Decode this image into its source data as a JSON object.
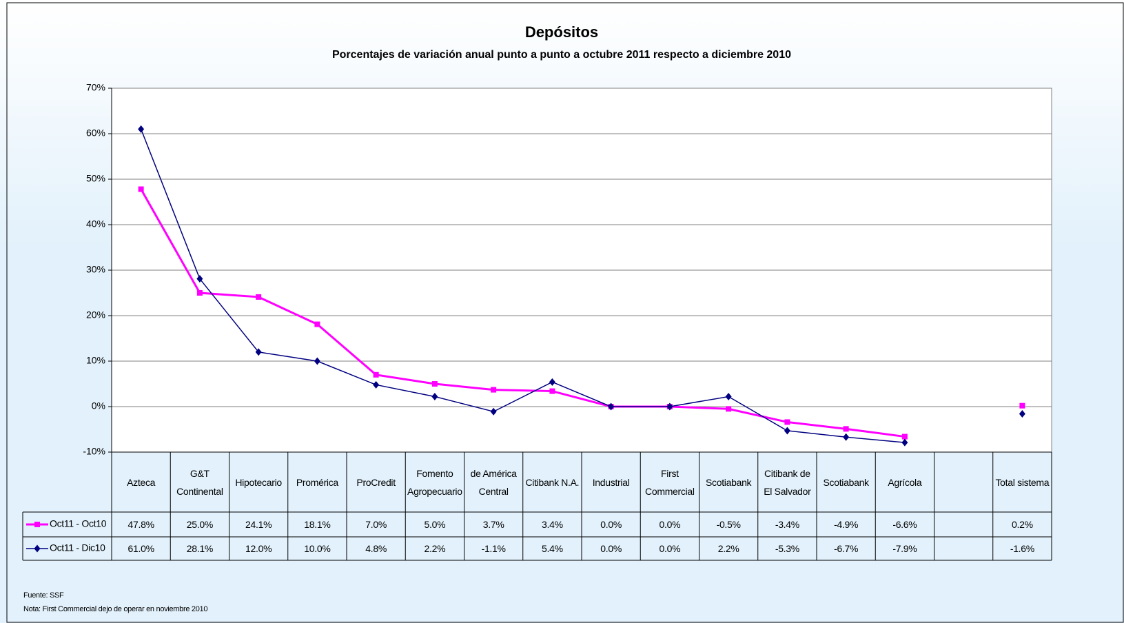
{
  "chart_data": {
    "type": "line",
    "title": "Depósitos",
    "subtitle": "Porcentajes de variación anual punto a punto a octubre 2011 respecto a diciembre 2010",
    "categories": [
      "Azteca",
      "G&T Continental",
      "Hipotecario",
      "Promérica",
      "ProCredit",
      "Fomento Agropecuario",
      "de América Central",
      "Citibank N.A.",
      "Industrial",
      "First Commercial",
      "Scotiabank",
      "Citibank de El Salvador",
      "Scotiabank",
      "Agrícola",
      null,
      "Total sistema"
    ],
    "series": [
      {
        "name": "Oct11 - Oct10",
        "color": "#ff00ff",
        "marker": "square",
        "values": [
          47.8,
          25.0,
          24.1,
          18.1,
          7.0,
          5.0,
          3.7,
          3.4,
          0.0,
          0.0,
          -0.5,
          -3.4,
          -4.9,
          -6.6,
          null,
          0.2
        ],
        "value_labels": [
          "47.8%",
          "25.0%",
          "24.1%",
          "18.1%",
          "7.0%",
          "5.0%",
          "3.7%",
          "3.4%",
          "0.0%",
          "0.0%",
          "-0.5%",
          "-3.4%",
          "-4.9%",
          "-6.6%",
          null,
          "0.2%"
        ]
      },
      {
        "name": "Oct11 - Dic10",
        "color": "#000080",
        "marker": "diamond",
        "values": [
          61.0,
          28.1,
          12.0,
          10.0,
          4.8,
          2.2,
          -1.1,
          5.4,
          0.0,
          0.0,
          2.2,
          -5.3,
          -6.7,
          -7.9,
          null,
          -1.6
        ],
        "value_labels": [
          "61.0%",
          "28.1%",
          "12.0%",
          "10.0%",
          "4.8%",
          "2.2%",
          "-1.1%",
          "5.4%",
          "0.0%",
          "0.0%",
          "2.2%",
          "-5.3%",
          "-6.7%",
          "-7.9%",
          null,
          "-1.6%"
        ]
      }
    ],
    "ylim": [
      -10,
      70
    ],
    "yticks": [
      {
        "value": -10,
        "label": "-10%"
      },
      {
        "value": 0,
        "label": "0%"
      },
      {
        "value": 10,
        "label": "10%"
      },
      {
        "value": 20,
        "label": "20%"
      },
      {
        "value": 30,
        "label": "30%"
      },
      {
        "value": 40,
        "label": "40%"
      },
      {
        "value": 50,
        "label": "50%"
      },
      {
        "value": 60,
        "label": "60%"
      },
      {
        "value": 70,
        "label": "70%"
      }
    ],
    "grid": true,
    "notes": [
      "Fuente: SSF",
      "Nota: First Commercial dejo de operar en noviembre 2010"
    ]
  }
}
